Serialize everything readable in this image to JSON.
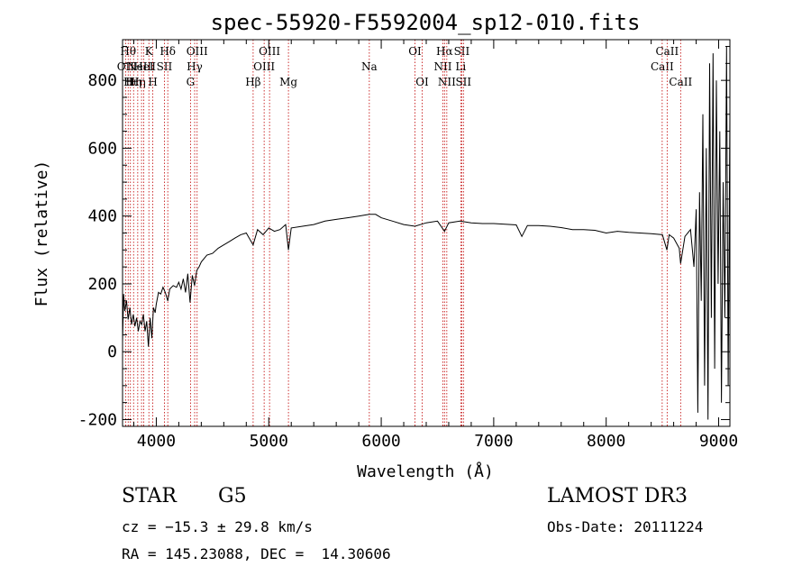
{
  "chart_data": {
    "type": "line",
    "title": "spec-55920-F5592004_sp12-010.fits",
    "xlabel": "Wavelength (Å)",
    "ylabel": "Flux (relative)",
    "xlim": [
      3700,
      9100
    ],
    "ylim": [
      -220,
      920
    ],
    "xticks": [
      4000,
      5000,
      6000,
      7000,
      8000,
      9000
    ],
    "yticks": [
      -200,
      0,
      200,
      400,
      600,
      800
    ],
    "emission_lines": [
      {
        "wl": 3727,
        "label": "OII",
        "row": 1
      },
      {
        "wl": 3750,
        "label": "Hθ",
        "row": 0
      },
      {
        "wl": 3770,
        "label": "Hι",
        "row": 2
      },
      {
        "wl": 3798,
        "label": "Hη",
        "row": 2
      },
      {
        "wl": 3835,
        "label": "Hη",
        "row": 2
      },
      {
        "wl": 3869,
        "label": "NeIII",
        "row": 1
      },
      {
        "wl": 3889,
        "label": "HeI",
        "row": 1
      },
      {
        "wl": 3934,
        "label": "K",
        "row": 0
      },
      {
        "wl": 3969,
        "label": "H",
        "row": 2
      },
      {
        "wl": 4072,
        "label": "SII",
        "row": 1
      },
      {
        "wl": 4102,
        "label": "Hδ",
        "row": 0
      },
      {
        "wl": 4304,
        "label": "G",
        "row": 2
      },
      {
        "wl": 4341,
        "label": "Hγ",
        "row": 1
      },
      {
        "wl": 4363,
        "label": "OIII",
        "row": 0
      },
      {
        "wl": 4861,
        "label": "Hβ",
        "row": 2
      },
      {
        "wl": 4959,
        "label": "OIII",
        "row": 1
      },
      {
        "wl": 5007,
        "label": "OIII",
        "row": 0
      },
      {
        "wl": 5175,
        "label": "Mg",
        "row": 2
      },
      {
        "wl": 5894,
        "label": "Na",
        "row": 1
      },
      {
        "wl": 6300,
        "label": "OI",
        "row": 0
      },
      {
        "wl": 6364,
        "label": "OI",
        "row": 2
      },
      {
        "wl": 6548,
        "label": "NII",
        "row": 1
      },
      {
        "wl": 6563,
        "label": "Hα",
        "row": 0
      },
      {
        "wl": 6583,
        "label": "NII",
        "row": 2
      },
      {
        "wl": 6707,
        "label": "Li",
        "row": 1
      },
      {
        "wl": 6716,
        "label": "SII",
        "row": 0
      },
      {
        "wl": 6731,
        "label": "SII",
        "row": 2
      },
      {
        "wl": 8498,
        "label": "CaII",
        "row": 1
      },
      {
        "wl": 8542,
        "label": "CaII",
        "row": 0
      },
      {
        "wl": 8662,
        "label": "CaII",
        "row": 2
      }
    ],
    "series": [
      {
        "name": "flux",
        "points": [
          [
            3700,
            30
          ],
          [
            3710,
            170
          ],
          [
            3720,
            120
          ],
          [
            3735,
            150
          ],
          [
            3750,
            95
          ],
          [
            3765,
            130
          ],
          [
            3780,
            80
          ],
          [
            3795,
            110
          ],
          [
            3810,
            75
          ],
          [
            3825,
            100
          ],
          [
            3840,
            60
          ],
          [
            3855,
            90
          ],
          [
            3870,
            80
          ],
          [
            3885,
            110
          ],
          [
            3900,
            60
          ],
          [
            3915,
            90
          ],
          [
            3930,
            15
          ],
          [
            3945,
            100
          ],
          [
            3960,
            40
          ],
          [
            3975,
            130
          ],
          [
            3990,
            115
          ],
          [
            4000,
            140
          ],
          [
            4020,
            175
          ],
          [
            4040,
            170
          ],
          [
            4060,
            190
          ],
          [
            4080,
            175
          ],
          [
            4102,
            150
          ],
          [
            4120,
            185
          ],
          [
            4150,
            195
          ],
          [
            4180,
            190
          ],
          [
            4200,
            205
          ],
          [
            4220,
            185
          ],
          [
            4240,
            215
          ],
          [
            4260,
            175
          ],
          [
            4280,
            230
          ],
          [
            4300,
            145
          ],
          [
            4320,
            225
          ],
          [
            4340,
            195
          ],
          [
            4360,
            240
          ],
          [
            4380,
            250
          ],
          [
            4400,
            265
          ],
          [
            4450,
            285
          ],
          [
            4500,
            290
          ],
          [
            4550,
            305
          ],
          [
            4600,
            315
          ],
          [
            4650,
            325
          ],
          [
            4700,
            335
          ],
          [
            4750,
            345
          ],
          [
            4800,
            350
          ],
          [
            4861,
            315
          ],
          [
            4900,
            360
          ],
          [
            4950,
            345
          ],
          [
            5000,
            365
          ],
          [
            5050,
            355
          ],
          [
            5100,
            360
          ],
          [
            5150,
            375
          ],
          [
            5175,
            300
          ],
          [
            5200,
            365
          ],
          [
            5300,
            370
          ],
          [
            5400,
            375
          ],
          [
            5500,
            385
          ],
          [
            5600,
            390
          ],
          [
            5700,
            395
          ],
          [
            5800,
            400
          ],
          [
            5894,
            405
          ],
          [
            5950,
            405
          ],
          [
            6000,
            395
          ],
          [
            6100,
            385
          ],
          [
            6200,
            375
          ],
          [
            6300,
            370
          ],
          [
            6400,
            380
          ],
          [
            6500,
            385
          ],
          [
            6563,
            355
          ],
          [
            6600,
            380
          ],
          [
            6700,
            385
          ],
          [
            6800,
            380
          ],
          [
            6900,
            378
          ],
          [
            7000,
            378
          ],
          [
            7100,
            376
          ],
          [
            7200,
            374
          ],
          [
            7250,
            340
          ],
          [
            7300,
            372
          ],
          [
            7400,
            372
          ],
          [
            7500,
            370
          ],
          [
            7600,
            366
          ],
          [
            7700,
            360
          ],
          [
            7800,
            360
          ],
          [
            7900,
            358
          ],
          [
            8000,
            350
          ],
          [
            8100,
            355
          ],
          [
            8200,
            352
          ],
          [
            8300,
            350
          ],
          [
            8400,
            348
          ],
          [
            8500,
            345
          ],
          [
            8540,
            300
          ],
          [
            8560,
            345
          ],
          [
            8600,
            335
          ],
          [
            8650,
            305
          ],
          [
            8662,
            260
          ],
          [
            8700,
            340
          ],
          [
            8750,
            360
          ],
          [
            8780,
            250
          ],
          [
            8800,
            420
          ],
          [
            8815,
            -180
          ],
          [
            8830,
            470
          ],
          [
            8845,
            150
          ],
          [
            8860,
            700
          ],
          [
            8875,
            -100
          ],
          [
            8890,
            600
          ],
          [
            8905,
            -200
          ],
          [
            8920,
            850
          ],
          [
            8935,
            100
          ],
          [
            8950,
            880
          ],
          [
            8965,
            -50
          ],
          [
            8980,
            800
          ],
          [
            8995,
            200
          ],
          [
            9010,
            650
          ],
          [
            9025,
            -150
          ],
          [
            9040,
            500
          ],
          [
            9055,
            100
          ],
          [
            9070,
            900
          ],
          [
            9085,
            -100
          ],
          [
            9100,
            700
          ]
        ]
      }
    ]
  },
  "info": {
    "object_type": "STAR",
    "subclass": "G5",
    "survey": "LAMOST DR3",
    "redshift_text": "cz = −15.3 ± 29.8 km/s",
    "obs_date_text": "Obs-Date: 20111224",
    "coords_text": "RA = 145.23088, DEC =  14.30606"
  }
}
